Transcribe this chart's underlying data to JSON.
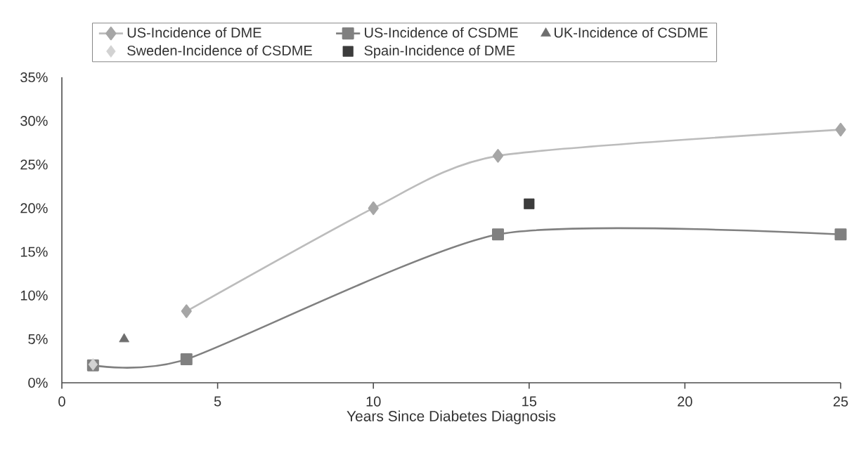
{
  "chart_data": {
    "type": "line",
    "xlabel": "Years Since Diabetes Diagnosis",
    "xlim": [
      0,
      25
    ],
    "xticks": [
      0,
      5,
      10,
      15,
      20,
      25
    ],
    "ylim": [
      0,
      35
    ],
    "yticks": [
      {
        "value": 0,
        "label": "0%"
      },
      {
        "value": 5,
        "label": "5%"
      },
      {
        "value": 10,
        "label": "10%"
      },
      {
        "value": 15,
        "label": "15%"
      },
      {
        "value": 20,
        "label": "20%"
      },
      {
        "value": 25,
        "label": "25%"
      },
      {
        "value": 30,
        "label": "30%"
      },
      {
        "value": 35,
        "label": "35%"
      }
    ],
    "legend": "top",
    "grid": false,
    "series": [
      {
        "name": "US-Incidence of DME",
        "marker": "diamond",
        "color": "#a6a6a6",
        "x": [
          4,
          10,
          14,
          25
        ],
        "values": [
          8.2,
          20,
          26,
          29
        ]
      },
      {
        "name": "US-Incidence of CSDME",
        "marker": "square",
        "color": "#808080",
        "x": [
          1,
          4,
          14,
          25
        ],
        "values": [
          2,
          2.7,
          17,
          17
        ]
      },
      {
        "name": "UK-Incidence of CSDME",
        "type": "scatter",
        "marker": "triangle",
        "color": "#6e6e6e",
        "x": [
          2
        ],
        "values": [
          5
        ]
      },
      {
        "name": "Sweden-Incidence of CSDME",
        "type": "scatter",
        "marker": "diamond",
        "color": "#d2d2d2",
        "x": [
          1
        ],
        "values": [
          2.1
        ]
      },
      {
        "name": "Spain-Incidence of DME",
        "type": "scatter",
        "marker": "square",
        "color": "#3c3c3c",
        "x": [
          15
        ],
        "values": [
          20.5
        ]
      }
    ]
  }
}
